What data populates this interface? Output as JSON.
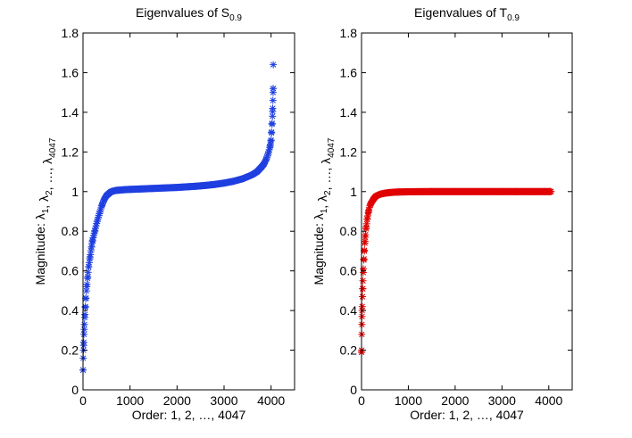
{
  "chart_data": [
    {
      "type": "scatter",
      "title": "Eigenvalues of S",
      "title_subscript": "0.9",
      "xlabel": "Order: 1, 2, …, 4047",
      "ylabel_main": "Magnitude: λ",
      "ylabel_parts": [
        {
          "text": "Magnitude: λ",
          "sub": "1"
        },
        {
          "text": ", λ",
          "sub": "2"
        },
        {
          "text": ", …, λ",
          "sub": "4047"
        }
      ],
      "xlim": [
        0,
        4500
      ],
      "ylim": [
        0,
        1.8
      ],
      "xticks": [
        0,
        1000,
        2000,
        3000,
        4000
      ],
      "xtick_labels": [
        "0",
        "1000",
        "2000",
        "3000",
        "4000"
      ],
      "yticks": [
        0,
        0.2,
        0.4,
        0.6,
        0.8,
        1,
        1.2,
        1.4,
        1.6,
        1.8
      ],
      "ytick_labels": [
        "0",
        "0.2",
        "0.4",
        "0.6",
        "0.8",
        "1",
        "1.2",
        "1.4",
        "1.6",
        "1.8"
      ],
      "marker": "asterisk",
      "color": "#1f3fe0",
      "series": [
        {
          "name": "eigenvalues",
          "x": [
            1,
            5,
            10,
            15,
            20,
            30,
            40,
            50,
            60,
            80,
            100,
            120,
            150,
            180,
            200,
            250,
            300,
            350,
            400,
            450,
            500,
            550,
            600,
            650,
            700,
            800,
            900,
            1000,
            1200,
            1400,
            1600,
            1800,
            2000,
            2200,
            2400,
            2600,
            2800,
            3000,
            3200,
            3400,
            3600,
            3700,
            3800,
            3850,
            3900,
            3950,
            3980,
            4000,
            4010,
            4020,
            4030,
            4035,
            4040,
            4043,
            4045,
            4047
          ],
          "y": [
            0.1,
            0.16,
            0.2,
            0.24,
            0.28,
            0.33,
            0.38,
            0.42,
            0.46,
            0.52,
            0.57,
            0.62,
            0.67,
            0.72,
            0.75,
            0.8,
            0.85,
            0.89,
            0.93,
            0.96,
            0.98,
            0.99,
            1.0,
            1.003,
            1.006,
            1.008,
            1.01,
            1.011,
            1.013,
            1.015,
            1.017,
            1.019,
            1.021,
            1.024,
            1.027,
            1.031,
            1.036,
            1.043,
            1.052,
            1.065,
            1.085,
            1.1,
            1.125,
            1.14,
            1.165,
            1.2,
            1.23,
            1.26,
            1.3,
            1.34,
            1.38,
            1.42,
            1.46,
            1.5,
            1.52,
            1.64
          ]
        }
      ]
    },
    {
      "type": "scatter",
      "title": "Eigenvalues of T",
      "title_subscript": "0.9",
      "xlabel": "Order: 1, 2, …, 4047",
      "ylabel_main": "Magnitude: λ",
      "ylabel_parts": [
        {
          "text": "Magnitude: λ",
          "sub": "1"
        },
        {
          "text": ", λ",
          "sub": "2"
        },
        {
          "text": ", …, λ",
          "sub": "4047"
        }
      ],
      "xlim": [
        0,
        4500
      ],
      "ylim": [
        0,
        1.8
      ],
      "xticks": [
        0,
        1000,
        2000,
        3000,
        4000
      ],
      "xtick_labels": [
        "0",
        "1000",
        "2000",
        "3000",
        "4000"
      ],
      "yticks": [
        0,
        0.2,
        0.4,
        0.6,
        0.8,
        1,
        1.2,
        1.4,
        1.6,
        1.8
      ],
      "ytick_labels": [
        "0",
        "0.2",
        "0.4",
        "0.6",
        "0.8",
        "1",
        "1.2",
        "1.4",
        "1.6",
        "1.8"
      ],
      "marker": "asterisk",
      "color": "#e00000",
      "series": [
        {
          "name": "eigenvalues",
          "x": [
            1,
            3,
            5,
            8,
            10,
            15,
            20,
            25,
            30,
            40,
            50,
            60,
            70,
            80,
            100,
            120,
            150,
            180,
            200,
            250,
            300,
            350,
            400,
            500,
            600,
            700,
            800,
            1000,
            1200,
            1500,
            1800,
            2000,
            2300,
            2600,
            3000,
            3300,
            3600,
            3900,
            4047
          ],
          "y": [
            0.19,
            0.2,
            0.28,
            0.33,
            0.37,
            0.42,
            0.47,
            0.51,
            0.55,
            0.61,
            0.66,
            0.7,
            0.74,
            0.77,
            0.82,
            0.86,
            0.9,
            0.93,
            0.94,
            0.96,
            0.975,
            0.982,
            0.987,
            0.992,
            0.995,
            0.997,
            0.998,
            0.999,
            0.9995,
            1.0,
            1.0,
            1.0,
            1.0,
            1.0,
            1.0,
            1.0,
            1.0,
            1.0,
            1.0
          ]
        }
      ]
    }
  ]
}
